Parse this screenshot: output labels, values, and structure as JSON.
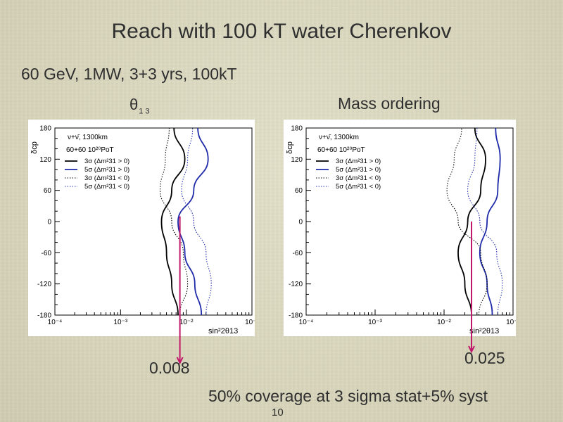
{
  "slide": {
    "title": "Reach with 100 kT water Cherenkov",
    "subtitle": "60 GeV, 1MW, 3+3 yrs, 100kT",
    "theta_label": "θ",
    "theta_sub": "13",
    "mass_label": "Mass ordering",
    "value_left": "0.008",
    "value_right": "0.025",
    "coverage_text": "50% coverage at 3 sigma stat+5% syst",
    "page_number": "10"
  },
  "colors": {
    "marker": "#c2186b",
    "black_curve": "#000000",
    "blue_curve": "#1e2aa8"
  },
  "chart_data": [
    {
      "type": "line",
      "title": "θ13",
      "xlabel": "sin²2θ13",
      "ylabel": "δcp",
      "x_scale": "log",
      "xlim": [
        0.0001,
        0.1
      ],
      "ylim": [
        -180,
        180
      ],
      "x_tick_labels": [
        "10⁻⁴",
        "10⁻³",
        "10⁻²",
        "10⁻¹"
      ],
      "y_tick_labels": [
        "180",
        "120",
        "60",
        "0",
        "-60",
        "-120",
        "-180"
      ],
      "legend": {
        "baseline": "ν+ν̄, 1300km",
        "pot": "60+60 10²⁰PoT",
        "entries": [
          "3σ (Δm²31 > 0)",
          "5σ (Δm²31 > 0)",
          "3σ (Δm²31 < 0)",
          "5σ (Δm²31 < 0)"
        ]
      },
      "marker_value": 0.008,
      "series": [
        {
          "name": "3σ (Δm²31 > 0)",
          "style": "solid-black",
          "points": [
            [
              -180,
              0.0075
            ],
            [
              -120,
              0.006
            ],
            [
              -60,
              0.005
            ],
            [
              0,
              0.0042
            ],
            [
              60,
              0.006
            ],
            [
              120,
              0.0095
            ],
            [
              180,
              0.0065
            ]
          ]
        },
        {
          "name": "5σ (Δm²31 > 0)",
          "style": "solid-blue",
          "points": [
            [
              -180,
              0.017
            ],
            [
              -120,
              0.0135
            ],
            [
              -60,
              0.0095
            ],
            [
              0,
              0.0075
            ],
            [
              60,
              0.013
            ],
            [
              120,
              0.0215
            ],
            [
              180,
              0.015
            ]
          ]
        },
        {
          "name": "3σ (Δm²31 < 0)",
          "style": "dotted-black",
          "points": [
            [
              -180,
              0.008
            ],
            [
              -120,
              0.0105
            ],
            [
              -60,
              0.009
            ],
            [
              0,
              0.006
            ],
            [
              60,
              0.004
            ],
            [
              120,
              0.0048
            ],
            [
              180,
              0.0055
            ]
          ]
        },
        {
          "name": "5σ (Δm²31 < 0)",
          "style": "dotted-blue",
          "points": [
            [
              -180,
              0.02
            ],
            [
              -120,
              0.024
            ],
            [
              -60,
              0.02
            ],
            [
              0,
              0.013
            ],
            [
              60,
              0.0085
            ],
            [
              120,
              0.0105
            ],
            [
              180,
              0.0125
            ]
          ]
        }
      ]
    },
    {
      "type": "line",
      "title": "Mass ordering",
      "xlabel": "sin²2θ13",
      "ylabel": "δcp",
      "x_scale": "log",
      "xlim": [
        0.0001,
        0.1
      ],
      "ylim": [
        -180,
        180
      ],
      "x_tick_labels": [
        "10⁻⁴",
        "10⁻³",
        "10⁻²",
        "10⁻¹"
      ],
      "y_tick_labels": [
        "180",
        "120",
        "60",
        "0",
        "-60",
        "-120",
        "-180"
      ],
      "legend": {
        "baseline": "ν+ν̄, 1300km",
        "pot": "60+60 10²⁰PoT",
        "entries": [
          "3σ (Δm²31 > 0)",
          "5σ (Δm²31 > 0)",
          "3σ (Δm²31 < 0)",
          "5σ (Δm²31 < 0)"
        ]
      },
      "marker_value": 0.025,
      "series": [
        {
          "name": "3σ (Δm²31 > 0)",
          "style": "solid-black",
          "points": [
            [
              -180,
              0.025
            ],
            [
              -120,
              0.02
            ],
            [
              -60,
              0.016
            ],
            [
              0,
              0.022
            ],
            [
              60,
              0.034
            ],
            [
              120,
              0.04
            ],
            [
              180,
              0.028
            ]
          ]
        },
        {
          "name": "5σ (Δm²31 > 0)",
          "style": "solid-blue",
          "points": [
            [
              -180,
              0.05
            ],
            [
              -120,
              0.042
            ],
            [
              -60,
              0.033
            ],
            [
              0,
              0.042
            ],
            [
              60,
              0.06
            ],
            [
              120,
              0.065
            ],
            [
              180,
              0.056
            ]
          ]
        },
        {
          "name": "3σ (Δm²31 < 0)",
          "style": "dotted-black",
          "points": [
            [
              -180,
              0.032
            ],
            [
              -120,
              0.042
            ],
            [
              -60,
              0.034
            ],
            [
              0,
              0.016
            ],
            [
              60,
              0.011
            ],
            [
              120,
              0.014
            ],
            [
              180,
              0.018
            ]
          ]
        },
        {
          "name": "5σ (Δm²31 < 0)",
          "style": "dotted-blue",
          "points": [
            [
              -180,
              0.06
            ],
            [
              -120,
              0.07
            ],
            [
              -60,
              0.058
            ],
            [
              0,
              0.033
            ],
            [
              60,
              0.022
            ],
            [
              120,
              0.028
            ],
            [
              180,
              0.03
            ]
          ]
        }
      ]
    }
  ]
}
